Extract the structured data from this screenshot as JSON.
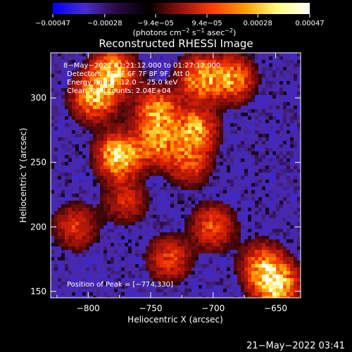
{
  "chart_data": {
    "type": "heatmap",
    "title": "Reconstructed RHESSI Image",
    "xlabel": "Heliocentric X (arcsec)",
    "ylabel": "Heliocentric Y (arcsec)",
    "xlim": [
      -830,
      -630
    ],
    "ylim": [
      145,
      335
    ],
    "xticks": [
      -800,
      -750,
      -700,
      -650
    ],
    "yticks": [
      150,
      200,
      250,
      300
    ],
    "xticklabels": [
      "−800",
      "−750",
      "−700",
      "−650"
    ],
    "yticklabels": [
      "150",
      "200",
      "250",
      "300"
    ],
    "colorbar": {
      "min": -0.00047,
      "max": 0.00047,
      "ticks": [
        -0.00047,
        -0.00028,
        -9.4e-05,
        9.4e-05,
        0.00028,
        0.00047
      ],
      "ticklabels": [
        "−0.00047",
        "−0.00028",
        "−9.4e−05",
        "9.4e−05",
        "0.00028",
        "0.00047"
      ],
      "unit_parts": [
        "(photons cm",
        "−2",
        " s",
        "−1",
        " asec",
        "−2",
        ")"
      ],
      "colors": [
        "#0000ff",
        "#4b2bd0",
        "#2a0a40",
        "#000000",
        "#9a1010",
        "#ff4000",
        "#ffa000",
        "#ffff80",
        "#ffffff"
      ]
    },
    "annotations": [
      " 8−May−2022 01:21:12.000 to 01:27:12.000",
      "Detectors: 3F 5F 6F 7F 8F 9F, Att 0",
      "Energy Range: 12.0 − 25.0 keV",
      "Clean     Total counts: 2.04E+04"
    ],
    "peak_label": "Position of Peak = [−774,330]",
    "peak": {
      "x": -774,
      "y": 330
    },
    "bright_sources": [
      {
        "x": -780,
        "y": 320,
        "strength": 0.85
      },
      {
        "x": -775,
        "y": 255,
        "strength": 1.0
      },
      {
        "x": -795,
        "y": 300,
        "strength": 0.8
      },
      {
        "x": -745,
        "y": 290,
        "strength": 0.75
      },
      {
        "x": -745,
        "y": 265,
        "strength": 0.65
      },
      {
        "x": -715,
        "y": 275,
        "strength": 0.8
      },
      {
        "x": -710,
        "y": 315,
        "strength": 0.75
      },
      {
        "x": -685,
        "y": 315,
        "strength": 0.7
      },
      {
        "x": -720,
        "y": 250,
        "strength": 0.5
      },
      {
        "x": -700,
        "y": 200,
        "strength": 0.5
      },
      {
        "x": -770,
        "y": 220,
        "strength": 0.35
      },
      {
        "x": -735,
        "y": 175,
        "strength": 0.45
      },
      {
        "x": -650,
        "y": 155,
        "strength": 1.0
      },
      {
        "x": -660,
        "y": 170,
        "strength": 0.6
      },
      {
        "x": -810,
        "y": 200,
        "strength": 0.4
      }
    ]
  },
  "footer": {
    "timestamp": "21−May−2022 03:41"
  }
}
